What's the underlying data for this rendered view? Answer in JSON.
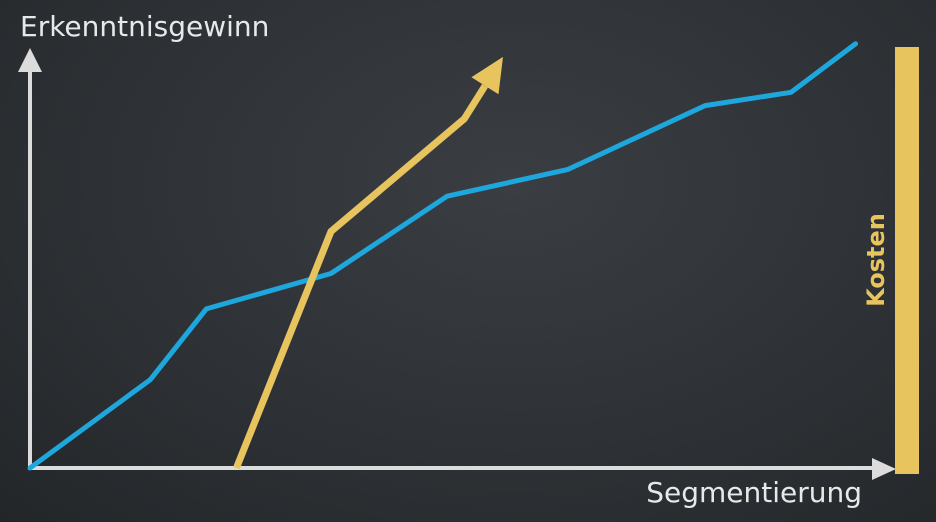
{
  "chart_data": {
    "type": "line",
    "ylabel": "Erkenntnisgewinn",
    "xlabel": "Segmentierung",
    "cost_label": "Kosten",
    "colors": {
      "erkenntnis": "#1ea7dc",
      "kosten": "#e8c45f",
      "axis": "#dcdcdc"
    },
    "xlim": [
      0,
      100
    ],
    "ylim": [
      0,
      100
    ],
    "series": [
      {
        "id": "erkenntnis",
        "color": "#1ea7dc",
        "points": [
          [
            0,
            0
          ],
          [
            14,
            20
          ],
          [
            20.5,
            36
          ],
          [
            35,
            44
          ],
          [
            48.5,
            61.5
          ],
          [
            62.5,
            67.5
          ],
          [
            78.5,
            82
          ],
          [
            88.5,
            85
          ],
          [
            96,
            96
          ]
        ]
      },
      {
        "id": "kosten",
        "color": "#e8c45f",
        "arrow": true,
        "points": [
          [
            24,
            0
          ],
          [
            35,
            53.5
          ],
          [
            50.5,
            79
          ]
        ]
      }
    ],
    "arrow_end": [
      55,
      93
    ],
    "grid": false,
    "legend": "none"
  }
}
